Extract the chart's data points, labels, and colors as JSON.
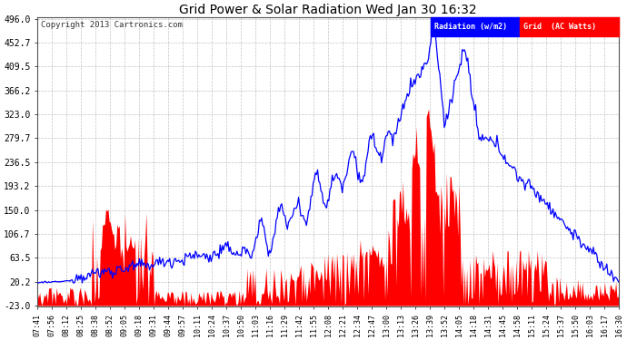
{
  "title": "Grid Power & Solar Radiation Wed Jan 30 16:32",
  "copyright": "Copyright 2013 Cartronics.com",
  "yticks": [
    496.0,
    452.7,
    409.5,
    366.2,
    323.0,
    279.7,
    236.5,
    193.2,
    150.0,
    106.7,
    63.5,
    20.2,
    -23.0
  ],
  "ymin": -23.0,
  "ymax": 496.0,
  "radiation_color": "#0000ff",
  "grid_color": "#ff0000",
  "background_color": "#ffffff",
  "plot_bg_color": "#ffffff",
  "legend_radiation_bg": "#0000ff",
  "legend_grid_bg": "#ff0000",
  "legend_text_radiation": "Radiation (w/m2)",
  "legend_grid_text": "Grid  (AC Watts)",
  "grid_line_color": "#aaaaaa",
  "xtick_labels": [
    "07:41",
    "07:56",
    "08:12",
    "08:25",
    "08:38",
    "08:52",
    "09:05",
    "09:18",
    "09:31",
    "09:44",
    "09:57",
    "10:11",
    "10:24",
    "10:37",
    "10:50",
    "11:03",
    "11:16",
    "11:29",
    "11:42",
    "11:55",
    "12:08",
    "12:21",
    "12:34",
    "12:47",
    "13:00",
    "13:13",
    "13:26",
    "13:39",
    "13:52",
    "14:05",
    "14:18",
    "14:31",
    "14:45",
    "14:58",
    "15:11",
    "15:24",
    "15:37",
    "15:50",
    "16:03",
    "16:17",
    "16:30"
  ],
  "n_points": 520
}
